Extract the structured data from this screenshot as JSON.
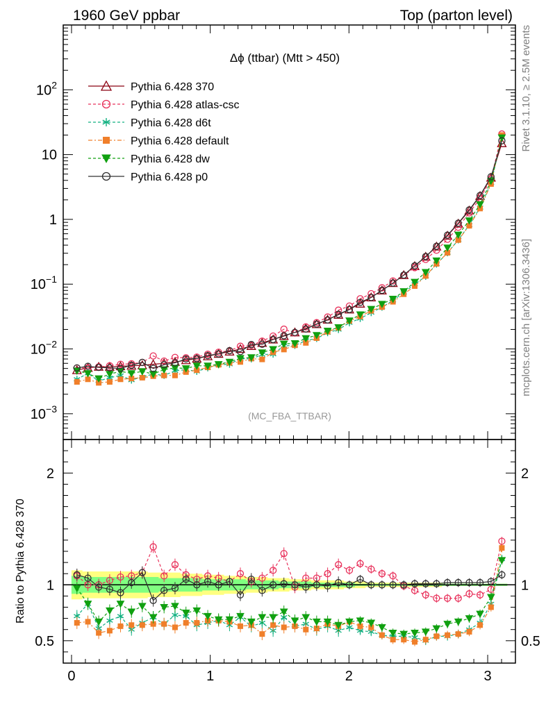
{
  "header": {
    "left": "1960 GeV ppbar",
    "right": "Top (parton level)"
  },
  "side_labels": {
    "rivet": "Rivet 3.1.10, ≥ 2.5M events",
    "mcplots": "mcplots.cern.ch [arXiv:1306.3436]"
  },
  "chart_data": {
    "type": "line",
    "title": "Δϕ (ttbar) (Mtt > 450)",
    "analysis_label": "(MC_FBA_TTBAR)",
    "xlabel": "",
    "ylabel": "",
    "ratio_ylabel": "Ratio to Pythia 6.428 370",
    "x_range": [
      -0.06,
      3.2
    ],
    "y_range": [
      0.0004,
      1000
    ],
    "y_scale": "log",
    "ratio_range": [
      0.3,
      2.3
    ],
    "legend_placement": "top-left",
    "x_ticks": [
      "0",
      "1",
      "2",
      "3"
    ],
    "y_ticks": [
      "10^-3",
      "10^-2",
      "10^-1",
      "1",
      "10",
      "10^2"
    ],
    "ratio_ticks": [
      "0.5",
      "1",
      "2"
    ],
    "x": [
      0.039,
      0.118,
      0.196,
      0.275,
      0.353,
      0.432,
      0.51,
      0.589,
      0.667,
      0.746,
      0.825,
      0.903,
      0.982,
      1.06,
      1.139,
      1.217,
      1.296,
      1.374,
      1.453,
      1.531,
      1.61,
      1.689,
      1.767,
      1.846,
      1.924,
      2.003,
      2.081,
      2.16,
      2.238,
      2.317,
      2.395,
      2.474,
      2.553,
      2.631,
      2.71,
      2.788,
      2.867,
      2.945,
      3.024,
      3.102
    ],
    "band": {
      "inner": [
        0.92,
        0.93,
        0.93,
        0.93,
        0.93,
        0.93,
        0.93,
        0.93,
        0.94,
        0.94,
        0.94,
        0.94,
        0.95,
        0.95,
        0.95,
        0.95,
        0.96,
        0.96,
        0.96,
        0.97,
        0.97,
        0.97,
        0.98,
        0.98,
        0.98,
        0.98,
        0.99,
        0.99,
        0.99,
        0.99,
        0.99,
        0.99,
        0.99,
        0.99,
        0.99,
        0.99,
        0.99,
        0.99,
        0.99,
        0.99
      ],
      "outer": [
        0.87,
        0.88,
        0.88,
        0.88,
        0.88,
        0.88,
        0.88,
        0.89,
        0.89,
        0.89,
        0.9,
        0.9,
        0.91,
        0.91,
        0.92,
        0.92,
        0.93,
        0.93,
        0.94,
        0.94,
        0.95,
        0.95,
        0.96,
        0.96,
        0.96,
        0.97,
        0.97,
        0.98,
        0.98,
        0.98,
        0.98,
        0.98,
        0.98,
        0.98,
        0.99,
        0.99,
        0.99,
        0.99,
        0.99,
        0.99
      ]
    },
    "series": [
      {
        "name": "Pythia 6.428 370",
        "color": "#8b0010",
        "dash": "",
        "marker": "triangle-open",
        "values": [
          0.0047,
          0.0051,
          0.0053,
          0.0053,
          0.0054,
          0.0055,
          0.0056,
          0.0058,
          0.006,
          0.0063,
          0.0067,
          0.0071,
          0.0077,
          0.0084,
          0.0091,
          0.01,
          0.0111,
          0.0124,
          0.014,
          0.0158,
          0.018,
          0.0207,
          0.0241,
          0.0283,
          0.0337,
          0.0407,
          0.05,
          0.0625,
          0.08,
          0.104,
          0.138,
          0.19,
          0.265,
          0.38,
          0.56,
          0.86,
          1.37,
          2.3,
          4.4,
          15.0
        ],
        "ratio": [
          1,
          1,
          1,
          1,
          1,
          1,
          1,
          1,
          1,
          1,
          1,
          1,
          1,
          1,
          1,
          1,
          1,
          1,
          1,
          1,
          1,
          1,
          1,
          1,
          1,
          1,
          1,
          1,
          1,
          1,
          1,
          1,
          1,
          1,
          1,
          1,
          1,
          1,
          1,
          1
        ]
      },
      {
        "name": "Pythia 6.428 atlas-csc",
        "color": "#e8305a",
        "dash": "4,3",
        "marker": "circle-open",
        "values": [
          0.0051,
          0.0051,
          0.0053,
          0.0055,
          0.0058,
          0.0059,
          0.0062,
          0.0078,
          0.0065,
          0.0074,
          0.0073,
          0.0075,
          0.0083,
          0.0089,
          0.0094,
          0.011,
          0.0114,
          0.0132,
          0.0158,
          0.0202,
          0.0176,
          0.0219,
          0.0255,
          0.0311,
          0.0397,
          0.046,
          0.0595,
          0.0712,
          0.088,
          0.112,
          0.137,
          0.18,
          0.241,
          0.334,
          0.493,
          0.757,
          1.26,
          2.09,
          4.22,
          20.8
        ],
        "ratio": [
          1.08,
          1.0,
          1.0,
          1.04,
          1.07,
          1.08,
          1.11,
          1.34,
          1.08,
          1.18,
          1.09,
          1.05,
          1.08,
          1.06,
          1.03,
          1.1,
          1.03,
          1.06,
          1.13,
          1.28,
          0.98,
          1.06,
          1.06,
          1.1,
          1.18,
          1.13,
          1.19,
          1.14,
          1.1,
          1.08,
          0.99,
          0.95,
          0.91,
          0.88,
          0.88,
          0.88,
          0.92,
          0.91,
          0.96,
          1.39
        ]
      },
      {
        "name": "Pythia 6.428 d6t",
        "color": "#10b080",
        "dash": "4,3",
        "marker": "asterisk",
        "values": [
          0.0034,
          0.0042,
          0.0032,
          0.0036,
          0.0039,
          0.0033,
          0.0037,
          0.0041,
          0.0039,
          0.0046,
          0.0048,
          0.0045,
          0.0051,
          0.0057,
          0.0058,
          0.0071,
          0.007,
          0.0082,
          0.0083,
          0.0112,
          0.0113,
          0.0135,
          0.0145,
          0.0178,
          0.0199,
          0.0253,
          0.0295,
          0.0363,
          0.044,
          0.0561,
          0.0745,
          0.0998,
          0.132,
          0.204,
          0.305,
          0.482,
          0.817,
          1.52,
          3.65,
          18.5
        ],
        "ratio": [
          0.72,
          0.83,
          0.61,
          0.68,
          0.72,
          0.6,
          0.66,
          0.71,
          0.65,
          0.73,
          0.72,
          0.64,
          0.66,
          0.68,
          0.64,
          0.71,
          0.63,
          0.66,
          0.59,
          0.71,
          0.63,
          0.65,
          0.6,
          0.63,
          0.59,
          0.62,
          0.59,
          0.58,
          0.55,
          0.54,
          0.54,
          0.53,
          0.5,
          0.54,
          0.54,
          0.56,
          0.6,
          0.66,
          0.83,
          1.23
        ]
      },
      {
        "name": "Pythia 6.428 default",
        "color": "#f07f2a",
        "dash": "6,3,2,3",
        "marker": "square",
        "values": [
          0.0031,
          0.0034,
          0.003,
          0.0031,
          0.0034,
          0.0035,
          0.0036,
          0.0038,
          0.0039,
          0.0039,
          0.0044,
          0.0047,
          0.0052,
          0.0057,
          0.0061,
          0.0063,
          0.0071,
          0.0069,
          0.0089,
          0.0098,
          0.0114,
          0.0124,
          0.0147,
          0.0184,
          0.0212,
          0.0271,
          0.0317,
          0.0388,
          0.0443,
          0.0535,
          0.07,
          0.0935,
          0.134,
          0.206,
          0.305,
          0.48,
          0.797,
          1.47,
          3.51,
          20.0
        ],
        "ratio": [
          0.66,
          0.67,
          0.57,
          0.59,
          0.63,
          0.64,
          0.64,
          0.65,
          0.65,
          0.62,
          0.66,
          0.66,
          0.68,
          0.68,
          0.67,
          0.63,
          0.64,
          0.56,
          0.64,
          0.62,
          0.63,
          0.6,
          0.61,
          0.65,
          0.63,
          0.67,
          0.63,
          0.62,
          0.55,
          0.51,
          0.51,
          0.49,
          0.51,
          0.54,
          0.55,
          0.56,
          0.58,
          0.64,
          0.8,
          1.33
        ]
      },
      {
        "name": "Pythia 6.428 dw",
        "color": "#10a010",
        "dash": "4,3",
        "marker": "triangle-down",
        "values": [
          0.0046,
          0.0042,
          0.0035,
          0.0041,
          0.0045,
          0.0042,
          0.0045,
          0.0041,
          0.0048,
          0.0051,
          0.005,
          0.0055,
          0.0055,
          0.0058,
          0.0063,
          0.0072,
          0.0074,
          0.0088,
          0.0099,
          0.012,
          0.0122,
          0.0146,
          0.0163,
          0.019,
          0.0215,
          0.0274,
          0.034,
          0.0413,
          0.0494,
          0.0591,
          0.0773,
          0.108,
          0.153,
          0.231,
          0.365,
          0.578,
          0.959,
          1.7,
          3.92,
          18.3
        ],
        "ratio": [
          0.97,
          0.83,
          0.67,
          0.77,
          0.83,
          0.76,
          0.81,
          0.71,
          0.8,
          0.81,
          0.75,
          0.77,
          0.72,
          0.69,
          0.69,
          0.72,
          0.67,
          0.71,
          0.71,
          0.76,
          0.68,
          0.71,
          0.67,
          0.67,
          0.64,
          0.67,
          0.68,
          0.66,
          0.62,
          0.57,
          0.56,
          0.57,
          0.58,
          0.61,
          0.65,
          0.67,
          0.7,
          0.74,
          0.89,
          1.22
        ]
      },
      {
        "name": "Pythia 6.428 p0",
        "color": "#303030",
        "dash": "",
        "marker": "circle-open",
        "values": [
          0.0051,
          0.0054,
          0.0052,
          0.0051,
          0.005,
          0.0056,
          0.0062,
          0.005,
          0.0057,
          0.0061,
          0.007,
          0.0071,
          0.0079,
          0.0084,
          0.0094,
          0.0091,
          0.0117,
          0.0118,
          0.014,
          0.016,
          0.018,
          0.0203,
          0.0242,
          0.028,
          0.0343,
          0.0407,
          0.0523,
          0.0624,
          0.0803,
          0.104,
          0.138,
          0.192,
          0.267,
          0.385,
          0.571,
          0.874,
          1.4,
          2.34,
          4.55,
          16.3
        ],
        "ratio": [
          1.09,
          1.06,
          0.98,
          0.96,
          0.93,
          1.02,
          1.11,
          0.86,
          0.95,
          0.97,
          1.05,
          1.0,
          1.03,
          1.0,
          1.03,
          0.91,
          1.05,
          0.95,
          1.0,
          1.01,
          1.0,
          0.98,
          1.0,
          0.99,
          1.02,
          1.0,
          1.05,
          1.0,
          1.0,
          1.0,
          1.0,
          1.01,
          1.01,
          1.01,
          1.02,
          1.02,
          1.02,
          1.02,
          1.03,
          1.09
        ]
      }
    ]
  }
}
